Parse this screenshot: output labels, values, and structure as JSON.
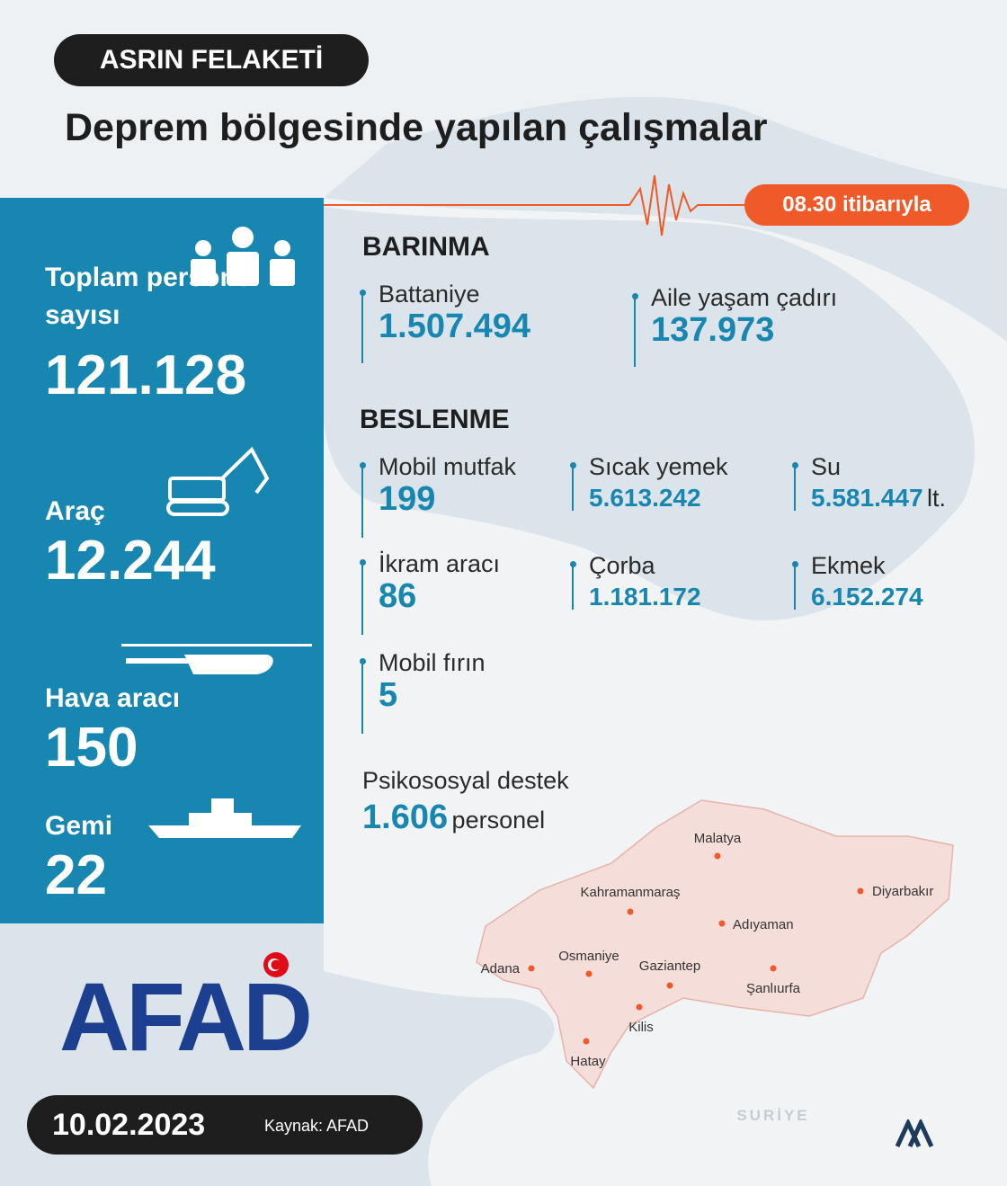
{
  "header": {
    "tag": "ASRIN FELAKETİ",
    "title": "Deprem bölgesinde yapılan çalışmalar",
    "as_of": "08.30 itibarıyla"
  },
  "left_panel": {
    "items": [
      {
        "label": "Toplam personel sayısı",
        "value": "121.128"
      },
      {
        "label": "Araç",
        "value": "12.244"
      },
      {
        "label": "Hava aracı",
        "value": "150"
      },
      {
        "label": "Gemi",
        "value": "22"
      }
    ]
  },
  "barinma": {
    "title": "BARINMA",
    "items": [
      {
        "label": "Battaniye",
        "value": "1.507.494"
      },
      {
        "label": "Aile yaşam çadırı",
        "value": "137.973"
      }
    ]
  },
  "beslenme": {
    "title": "BESLENME",
    "items": [
      {
        "label": "Mobil mutfak",
        "value": "199"
      },
      {
        "label": "Sıcak yemek",
        "value": "5.613.242"
      },
      {
        "label": "Su",
        "value": "5.581.447",
        "unit": "lt."
      },
      {
        "label": "İkram aracı",
        "value": "86"
      },
      {
        "label": "Çorba",
        "value": "1.181.172"
      },
      {
        "label": "Ekmek",
        "value": "6.152.274"
      },
      {
        "label": "Mobil fırın",
        "value": "5"
      }
    ]
  },
  "psikososyal": {
    "label": "Psikososyal destek",
    "value": "1.606",
    "unit": "personel"
  },
  "map": {
    "cities": [
      "Malatya",
      "Kahramanmaraş",
      "Diyarbakır",
      "Adıyaman",
      "Osmaniye",
      "Adana",
      "Gaziantep",
      "Şanlıurfa",
      "Kilis",
      "Hatay"
    ],
    "country": "SURİYE"
  },
  "footer": {
    "logo": "AFAD",
    "date": "10.02.2023",
    "source": "Kaynak: AFAD"
  }
}
